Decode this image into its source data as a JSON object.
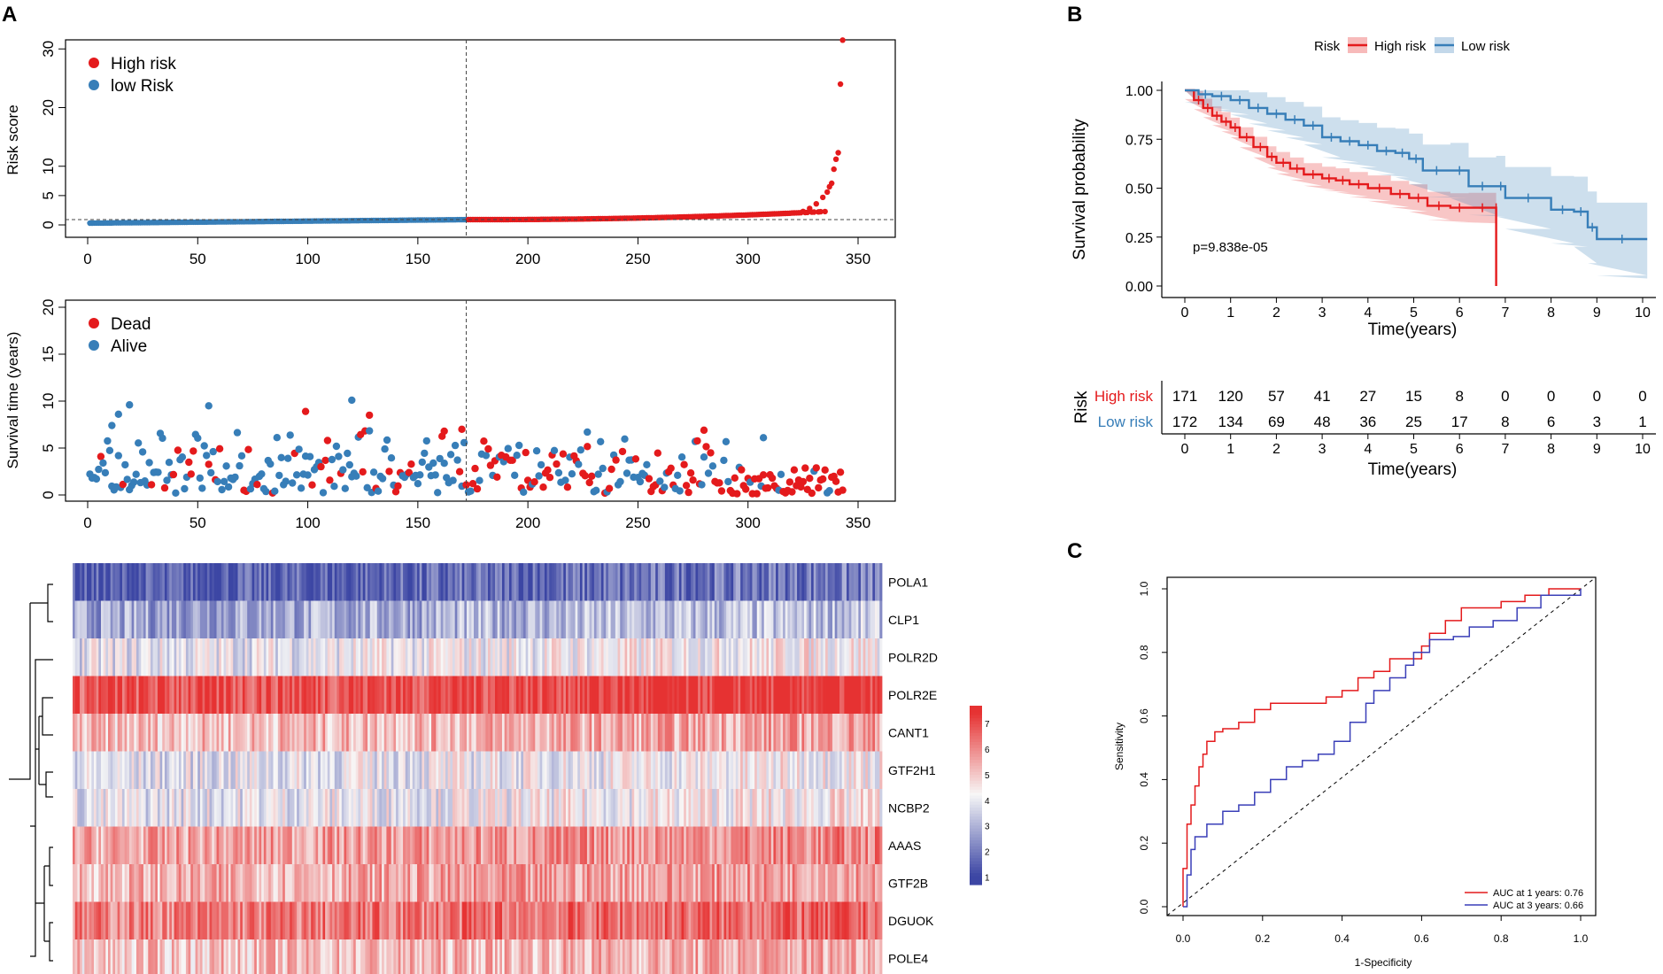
{
  "colors": {
    "red": "#E41A1C",
    "blue": "#377EB8",
    "heat_low": "#3C46A4",
    "heat_mid": "#F7F7F7",
    "heat_high": "#E63232"
  },
  "panels": {
    "a": "A",
    "b": "B",
    "c": "C"
  },
  "chart_data": [
    {
      "id": "risk_score",
      "type": "scatter",
      "xlabel": "",
      "ylabel": "Risk score",
      "xlim": [
        0,
        350
      ],
      "ylim": [
        0,
        32
      ],
      "xticks": [
        0,
        50,
        100,
        150,
        200,
        250,
        300,
        350
      ],
      "yticks": [
        0,
        5,
        10,
        20,
        30
      ],
      "cutoff_index": 172,
      "cutoff_score": 0.9,
      "n": 343,
      "legend": [
        "High risk",
        "low Risk"
      ],
      "series": [
        {
          "name": "low Risk",
          "range": [
            1,
            172
          ],
          "score_start": 0.3,
          "score_end": 0.9
        },
        {
          "name": "High risk",
          "range": [
            173,
            343
          ],
          "score_start": 0.9,
          "score_end": 31.5
        }
      ],
      "tail_points": [
        [
          325,
          2.3
        ],
        [
          328,
          2.8
        ],
        [
          331,
          3.6
        ],
        [
          334,
          4.7
        ],
        [
          336,
          5.6
        ],
        [
          337,
          6.5
        ],
        [
          338,
          7.1
        ],
        [
          339,
          9.5
        ],
        [
          340,
          11.2
        ],
        [
          341,
          12.3
        ],
        [
          342,
          24.0
        ],
        [
          343,
          31.5
        ]
      ]
    },
    {
      "id": "survival_time",
      "type": "scatter",
      "xlabel": "",
      "ylabel": "Survival time (years)",
      "xlim": [
        0,
        350
      ],
      "ylim": [
        0,
        20
      ],
      "xticks": [
        0,
        50,
        100,
        150,
        200,
        250,
        300,
        350
      ],
      "yticks": [
        0,
        5,
        10,
        15,
        20
      ],
      "legend": [
        "Dead",
        "Alive"
      ],
      "highlighted_points": [
        {
          "x": 19,
          "y": 9.6,
          "status": "Alive"
        },
        {
          "x": 14,
          "y": 8.6,
          "status": "Alive"
        },
        {
          "x": 11,
          "y": 7.4,
          "status": "Alive"
        },
        {
          "x": 55,
          "y": 9.5,
          "status": "Alive"
        },
        {
          "x": 120,
          "y": 10.1,
          "status": "Alive"
        },
        {
          "x": 99,
          "y": 8.9,
          "status": "Dead"
        },
        {
          "x": 128,
          "y": 8.5,
          "status": "Dead"
        },
        {
          "x": 170,
          "y": 7.0,
          "status": "Dead"
        },
        {
          "x": 162,
          "y": 6.8,
          "status": "Dead"
        },
        {
          "x": 280,
          "y": 6.9,
          "status": "Dead"
        },
        {
          "x": 227,
          "y": 6.7,
          "status": "Alive"
        },
        {
          "x": 307,
          "y": 6.1,
          "status": "Alive"
        }
      ]
    },
    {
      "id": "heatmap",
      "type": "heatmap",
      "genes": [
        "POLA1",
        "CLP1",
        "POLR2D",
        "POLR2E",
        "CANT1",
        "GTF2H1",
        "NCBP2",
        "AAAS",
        "GTF2B",
        "DGUOK",
        "POLE4"
      ],
      "gene_means": [
        1.6,
        3.0,
        4.2,
        7.2,
        5.4,
        4.1,
        4.2,
        5.8,
        5.6,
        6.4,
        5.3
      ],
      "colorbar_ticks": [
        1,
        2,
        3,
        4,
        5,
        6,
        7
      ],
      "samples": 343
    },
    {
      "id": "km",
      "type": "line",
      "title": "",
      "legend_title": "Risk",
      "legend": [
        "High risk",
        "Low risk"
      ],
      "xlabel": "Time(years)",
      "ylabel": "Survival probability",
      "xlim": [
        0,
        10
      ],
      "ylim": [
        0,
        1
      ],
      "xticks": [
        0,
        1,
        2,
        3,
        4,
        5,
        6,
        7,
        8,
        9,
        10
      ],
      "yticks": [
        "0.00",
        "0.25",
        "0.50",
        "0.75",
        "1.00"
      ],
      "pvalue": "p=9.838e-05",
      "series": [
        {
          "name": "High risk",
          "x": [
            0,
            0.2,
            0.4,
            0.6,
            0.8,
            1.0,
            1.2,
            1.5,
            1.8,
            2.0,
            2.3,
            2.6,
            3.0,
            3.3,
            3.6,
            4.0,
            4.5,
            4.9,
            5.3,
            5.8,
            6.2,
            6.8,
            6.8
          ],
          "y": [
            1.0,
            0.95,
            0.91,
            0.87,
            0.84,
            0.81,
            0.76,
            0.71,
            0.66,
            0.63,
            0.6,
            0.57,
            0.55,
            0.54,
            0.52,
            0.5,
            0.47,
            0.45,
            0.41,
            0.4,
            0.4,
            0.4,
            0.0
          ]
        },
        {
          "name": "Low risk",
          "x": [
            0,
            0.3,
            0.6,
            1.0,
            1.4,
            1.8,
            2.2,
            2.6,
            3.0,
            3.4,
            3.8,
            4.2,
            4.6,
            4.9,
            5.2,
            5.8,
            6.2,
            6.8,
            7.0,
            8.0,
            8.5,
            8.8,
            9.0,
            10.1
          ],
          "y": [
            1.0,
            0.98,
            0.97,
            0.95,
            0.91,
            0.88,
            0.85,
            0.82,
            0.76,
            0.74,
            0.72,
            0.69,
            0.68,
            0.65,
            0.59,
            0.59,
            0.51,
            0.51,
            0.45,
            0.39,
            0.38,
            0.3,
            0.24,
            0.24
          ]
        }
      ],
      "risk_table": {
        "title": "Risk",
        "xlabel": "Time(years)",
        "rows": [
          {
            "label": "High risk",
            "values": [
              171,
              120,
              57,
              41,
              27,
              15,
              8,
              0,
              0,
              0,
              0
            ]
          },
          {
            "label": "Low risk",
            "values": [
              172,
              134,
              69,
              48,
              36,
              25,
              17,
              8,
              6,
              3,
              1
            ]
          }
        ]
      }
    },
    {
      "id": "roc",
      "type": "line",
      "xlabel": "1-Specificity",
      "ylabel": "Sensitivity",
      "xlim": [
        0,
        1
      ],
      "ylim": [
        0,
        1
      ],
      "ticks": [
        "0.0",
        "0.2",
        "0.4",
        "0.6",
        "0.8",
        "1.0"
      ],
      "legend": [
        "AUC at 1 years: 0.76",
        "AUC at 3 years: 0.66"
      ],
      "series": [
        {
          "name": "AUC at 1 years: 0.76",
          "x": [
            0,
            0,
            0.01,
            0.01,
            0.02,
            0.03,
            0.04,
            0.05,
            0.06,
            0.08,
            0.1,
            0.14,
            0.18,
            0.22,
            0.3,
            0.36,
            0.4,
            0.44,
            0.48,
            0.52,
            0.6,
            0.62,
            0.66,
            0.7,
            0.8,
            0.86,
            0.92,
            1.0
          ],
          "y": [
            0,
            0.12,
            0.18,
            0.26,
            0.32,
            0.38,
            0.44,
            0.48,
            0.52,
            0.55,
            0.56,
            0.58,
            0.62,
            0.64,
            0.64,
            0.66,
            0.68,
            0.72,
            0.74,
            0.78,
            0.82,
            0.86,
            0.9,
            0.94,
            0.96,
            0.98,
            1.0,
            1.0
          ]
        },
        {
          "name": "AUC at 3 years: 0.66",
          "x": [
            0,
            0.01,
            0.02,
            0.03,
            0.06,
            0.1,
            0.14,
            0.18,
            0.22,
            0.26,
            0.3,
            0.34,
            0.38,
            0.42,
            0.46,
            0.48,
            0.52,
            0.56,
            0.58,
            0.62,
            0.68,
            0.72,
            0.78,
            0.84,
            0.9,
            1.0
          ],
          "y": [
            0,
            0.1,
            0.18,
            0.22,
            0.26,
            0.3,
            0.32,
            0.36,
            0.4,
            0.44,
            0.46,
            0.48,
            0.52,
            0.58,
            0.64,
            0.68,
            0.72,
            0.76,
            0.8,
            0.84,
            0.85,
            0.88,
            0.9,
            0.94,
            0.98,
            1.0
          ]
        }
      ]
    }
  ]
}
